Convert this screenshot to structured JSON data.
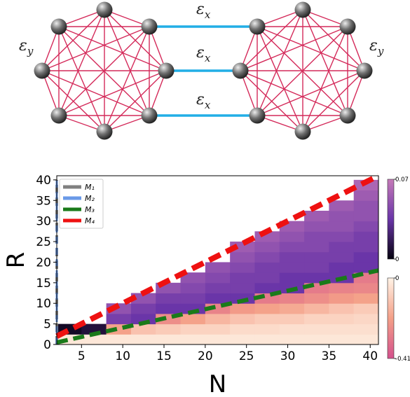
{
  "diagram": {
    "labels": [
      {
        "symbol": "ε",
        "sub": "x"
      },
      {
        "symbol": "ε",
        "sub": "x"
      },
      {
        "symbol": "ε",
        "sub": "x"
      },
      {
        "symbol": "ε",
        "sub": "y"
      },
      {
        "symbol": "ε",
        "sub": "y"
      }
    ]
  },
  "chart_data": {
    "type": "heatmap",
    "xlabel": "N",
    "ylabel": "R",
    "xlim": [
      2,
      41
    ],
    "ylim": [
      0,
      41
    ],
    "xticks": [
      5,
      10,
      15,
      20,
      25,
      30,
      35,
      40
    ],
    "yticks": [
      0,
      5,
      10,
      15,
      20,
      25,
      30,
      35,
      40
    ],
    "xbins": [
      2,
      5,
      8,
      11,
      14,
      17,
      20,
      23,
      26,
      29,
      32,
      35,
      38,
      41
    ],
    "ybins": [
      0,
      2.5,
      5,
      7.5,
      10,
      12.5,
      15,
      17.5,
      20,
      22.5,
      25,
      27.5,
      30,
      32.5,
      35,
      37.5,
      40
    ],
    "z": [
      [
        -0.03,
        0.005,
        null,
        null,
        null,
        null,
        null,
        null,
        null,
        null,
        null,
        null,
        null,
        null,
        null,
        null
      ],
      [
        -0.03,
        0.01,
        null,
        null,
        null,
        null,
        null,
        null,
        null,
        null,
        null,
        null,
        null,
        null,
        null,
        null
      ],
      [
        -0.03,
        -0.2,
        0.04,
        0.05,
        null,
        null,
        null,
        null,
        null,
        null,
        null,
        null,
        null,
        null,
        null,
        null
      ],
      [
        -0.03,
        -0.12,
        0.035,
        0.04,
        0.05,
        null,
        null,
        null,
        null,
        null,
        null,
        null,
        null,
        null,
        null,
        null
      ],
      [
        -0.03,
        -0.1,
        -0.25,
        0.035,
        0.04,
        0.05,
        null,
        null,
        null,
        null,
        null,
        null,
        null,
        null,
        null,
        null
      ],
      [
        -0.03,
        -0.08,
        -0.2,
        0.035,
        0.04,
        0.045,
        0.05,
        null,
        null,
        null,
        null,
        null,
        null,
        null,
        null,
        null
      ],
      [
        -0.03,
        -0.08,
        -0.15,
        -0.28,
        0.035,
        0.04,
        0.045,
        0.05,
        null,
        null,
        null,
        null,
        null,
        null,
        null,
        null
      ],
      [
        -0.03,
        -0.06,
        -0.12,
        -0.22,
        0.035,
        0.04,
        0.04,
        0.045,
        0.05,
        0.055,
        null,
        null,
        null,
        null,
        null,
        null
      ],
      [
        -0.03,
        -0.06,
        -0.1,
        -0.2,
        -0.3,
        0.035,
        0.04,
        0.04,
        0.045,
        0.05,
        0.055,
        null,
        null,
        null,
        null,
        null
      ],
      [
        -0.03,
        -0.05,
        -0.1,
        -0.18,
        -0.28,
        0.035,
        0.035,
        0.04,
        0.04,
        0.045,
        0.05,
        0.055,
        null,
        null,
        null,
        null
      ],
      [
        -0.03,
        -0.05,
        -0.08,
        -0.15,
        -0.25,
        -0.3,
        0.035,
        0.04,
        0.04,
        0.045,
        0.045,
        0.05,
        0.055,
        null,
        null,
        null
      ],
      [
        -0.03,
        -0.05,
        -0.08,
        -0.12,
        -0.22,
        -0.28,
        0.035,
        0.035,
        0.04,
        0.04,
        0.045,
        0.05,
        0.05,
        0.055,
        null,
        null
      ],
      [
        -0.03,
        -0.05,
        -0.07,
        -0.1,
        -0.2,
        -0.27,
        -0.3,
        0.035,
        0.035,
        0.04,
        0.04,
        0.045,
        0.05,
        0.05,
        0.055,
        0.06
      ]
    ],
    "colorbars": [
      {
        "lim": [
          0,
          0.07
        ],
        "ticks": [
          0,
          0.07
        ],
        "colors": [
          "#05020f",
          "#6a35a8",
          "#c57ab8"
        ]
      },
      {
        "lim": [
          -0.41,
          0
        ],
        "ticks": [
          -0.41,
          0
        ],
        "colors": [
          "#d4508c",
          "#f4a088",
          "#fff3e6"
        ]
      }
    ],
    "series": [
      {
        "name": "M₁",
        "color": "#808080",
        "x": [
          2,
          2
        ],
        "values": [
          0,
          40
        ]
      },
      {
        "name": "M₂",
        "color": "#6a9ae8",
        "x": [
          2,
          2
        ],
        "values": [
          0,
          40
        ]
      },
      {
        "name": "M₃",
        "color": "#1a7a1a",
        "x": [
          2,
          41
        ],
        "values": [
          0.5,
          18
        ]
      },
      {
        "name": "M₄",
        "color": "#ee1111",
        "x": [
          2,
          41
        ],
        "values": [
          2,
          41
        ]
      }
    ],
    "legend": "upper left"
  }
}
